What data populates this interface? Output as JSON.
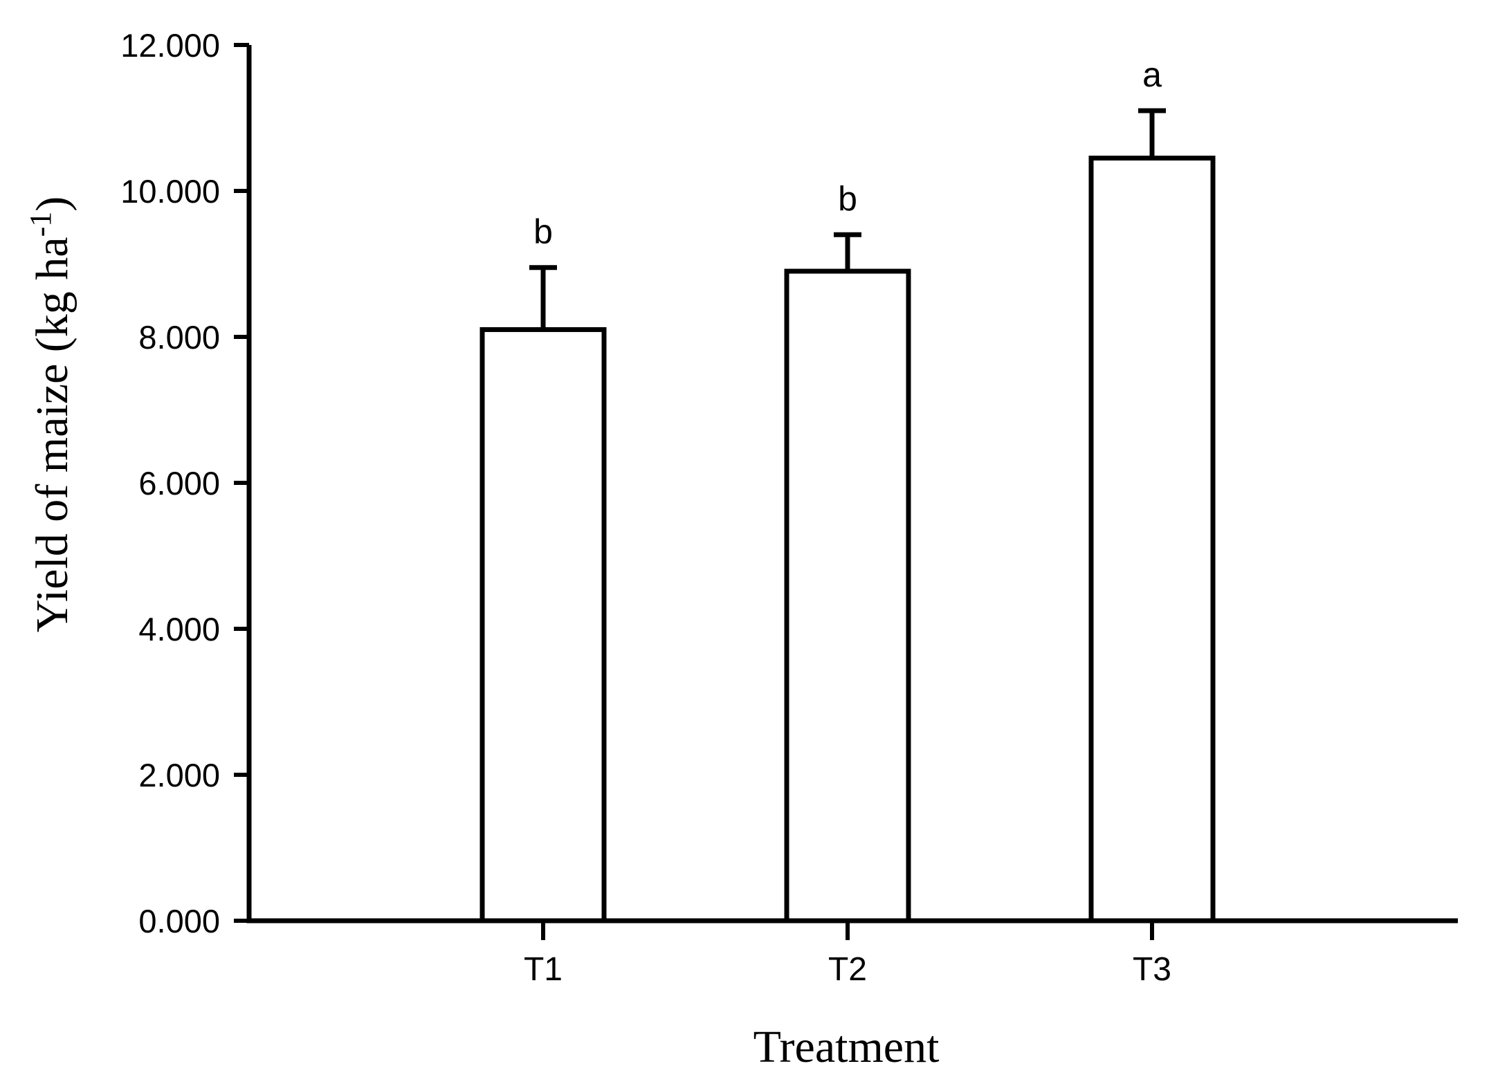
{
  "figure": {
    "background_color": "#ffffff",
    "ink_color": "#000000",
    "bar_fill_color": "#ffffff"
  },
  "chart_data": {
    "type": "bar",
    "title": "",
    "xlabel": "Treatment",
    "ylabel": {
      "text": "Yield of maize (kg ha-1)",
      "main": "Yield of maize (kg ha",
      "sup": "-1",
      "close": ")"
    },
    "categories": [
      "T1",
      "T2",
      "T3"
    ],
    "series": [
      {
        "name": "Yield of maize",
        "values": [
          8100,
          8900,
          10450
        ],
        "errors_upper": [
          850,
          500,
          650
        ],
        "significance_letters": [
          "b",
          "b",
          "a"
        ]
      }
    ],
    "ylim": [
      0,
      12000
    ],
    "yticks": [
      {
        "value": 0,
        "label": "0.000"
      },
      {
        "value": 2000,
        "label": "2.000"
      },
      {
        "value": 4000,
        "label": "4.000"
      },
      {
        "value": 6000,
        "label": "6.000"
      },
      {
        "value": 8000,
        "label": "8.000"
      },
      {
        "value": 10000,
        "label": "10.000"
      },
      {
        "value": 12000,
        "label": "12.000"
      }
    ],
    "grid": false,
    "legend": "none",
    "error_bars": "upper-only",
    "bar_style": {
      "fill": "#ffffff",
      "stroke": "#000000"
    }
  }
}
